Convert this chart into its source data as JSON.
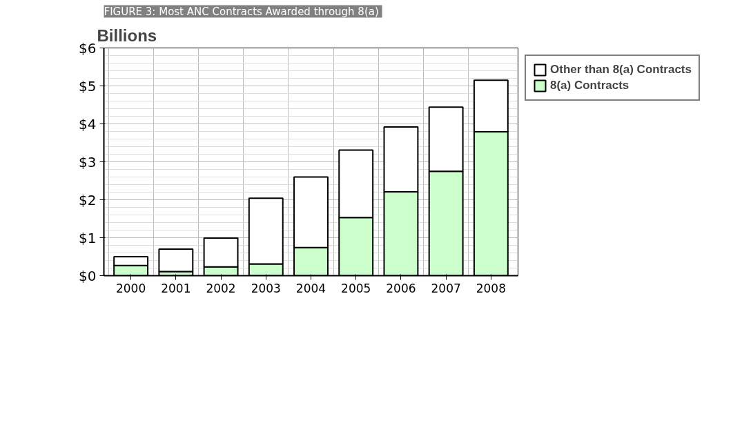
{
  "chart_data": {
    "type": "bar",
    "title": "FIGURE 3:  Most ANC Contracts Awarded through 8(a)",
    "ylabel": "Billions",
    "categories": [
      "2000",
      "2001",
      "2002",
      "2003",
      "2004",
      "2005",
      "2006",
      "2007",
      "2008"
    ],
    "stacked": true,
    "series": [
      {
        "name": "8(a) Contracts",
        "color": "#ccffcc",
        "values": [
          0.27,
          0.11,
          0.23,
          0.31,
          0.74,
          1.53,
          2.21,
          2.75,
          3.79
        ]
      },
      {
        "name": "Other than 8(a) Contracts",
        "color": "#ffffff",
        "values": [
          0.23,
          0.59,
          0.76,
          1.73,
          1.86,
          1.78,
          1.71,
          1.69,
          1.36
        ]
      }
    ],
    "ylim": [
      0,
      6
    ],
    "yticks": [
      {
        "value": 0,
        "label": "$0"
      },
      {
        "value": 1,
        "label": "$1"
      },
      {
        "value": 2,
        "label": "$2"
      },
      {
        "value": 3,
        "label": "$3"
      },
      {
        "value": 4,
        "label": "$4"
      },
      {
        "value": 5,
        "label": "$5"
      },
      {
        "value": 6,
        "label": "$6"
      }
    ],
    "grid": true,
    "legend": "top right"
  }
}
